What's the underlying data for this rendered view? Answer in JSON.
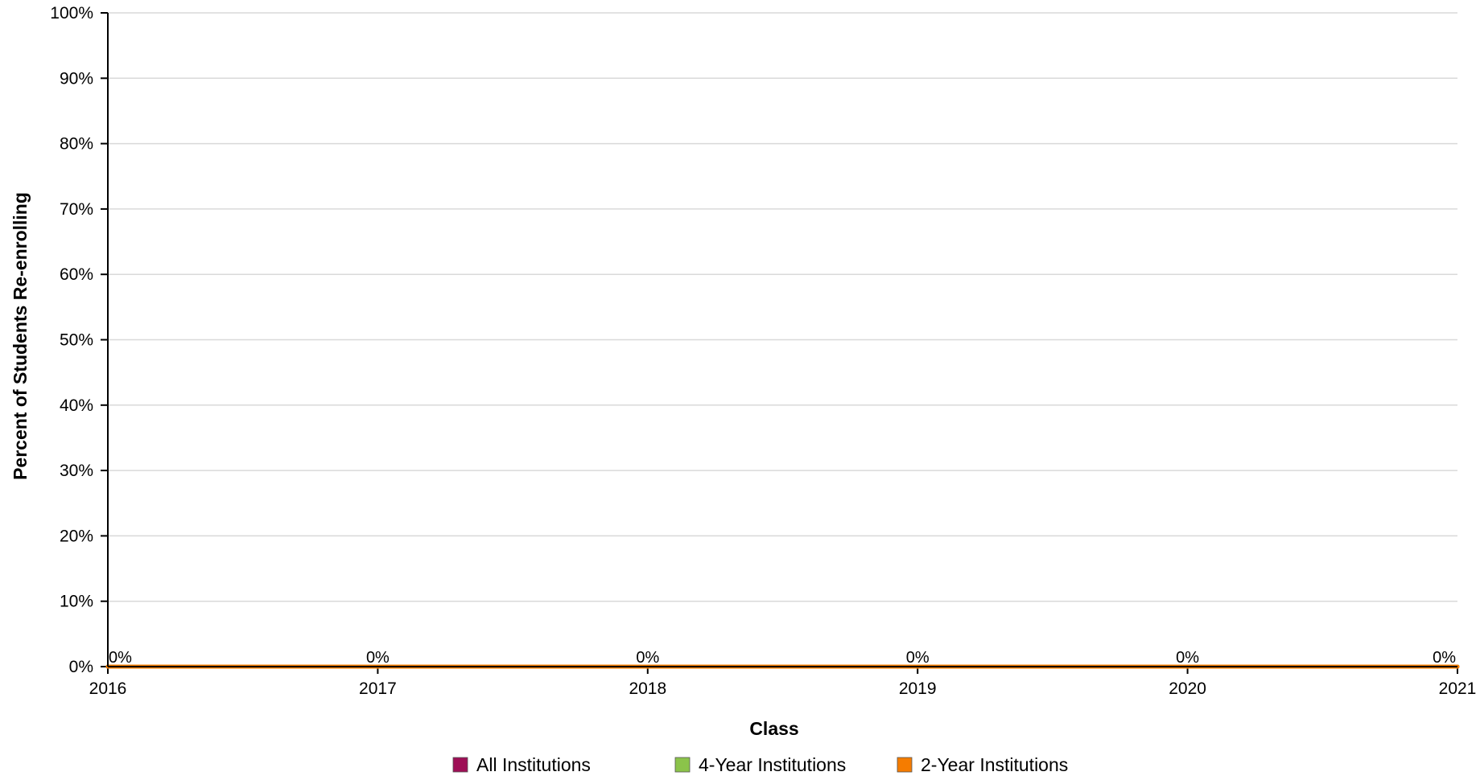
{
  "chart_data": {
    "type": "line",
    "categories": [
      "2016",
      "2017",
      "2018",
      "2019",
      "2020",
      "2021"
    ],
    "series": [
      {
        "name": "All Institutions",
        "color": "#9e0f56",
        "values": [
          0,
          0,
          0,
          0,
          0,
          0
        ]
      },
      {
        "name": "4-Year Institutions",
        "color": "#8bc34a",
        "values": [
          0,
          0,
          0,
          0,
          0,
          0
        ]
      },
      {
        "name": "2-Year Institutions",
        "color": "#f57c00",
        "values": [
          0,
          0,
          0,
          0,
          0,
          0
        ]
      }
    ],
    "data_labels": [
      "0%",
      "0%",
      "0%",
      "0%",
      "0%",
      "0%"
    ],
    "xlabel": "Class",
    "ylabel": "Percent of Students Re-enrolling",
    "ylim": [
      0,
      100
    ],
    "yticks": [
      "0%",
      "10%",
      "20%",
      "30%",
      "40%",
      "50%",
      "60%",
      "70%",
      "80%",
      "90%",
      "100%"
    ],
    "grid": true,
    "legend_position": "bottom"
  }
}
